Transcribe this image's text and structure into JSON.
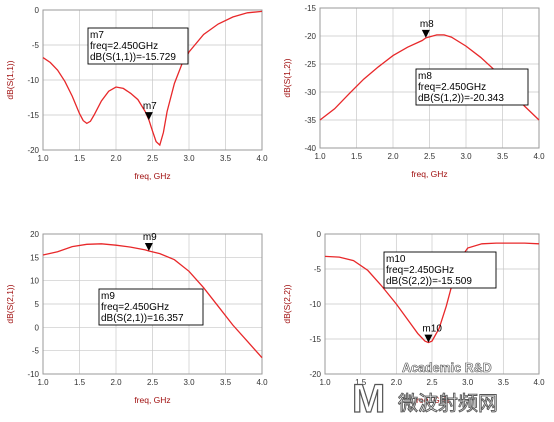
{
  "chart_data": [
    {
      "type": "line",
      "xlabel": "freq, GHz",
      "ylabel": "dB(S(1,1))",
      "xlim": [
        1.0,
        4.0
      ],
      "ylim": [
        -20,
        0
      ],
      "xticks": [
        "1.0",
        "1.5",
        "2.0",
        "2.5",
        "3.0",
        "3.5",
        "4.0"
      ],
      "yticks": [
        "0",
        "-5",
        "-10",
        "-15",
        "-20"
      ],
      "grid": true,
      "series": [
        {
          "color": "#e8282a",
          "x": [
            1.0,
            1.1,
            1.2,
            1.3,
            1.4,
            1.5,
            1.55,
            1.6,
            1.65,
            1.7,
            1.8,
            1.9,
            2.0,
            2.1,
            2.2,
            2.3,
            2.4,
            2.45,
            2.5,
            2.55,
            2.6,
            2.65,
            2.7,
            2.8,
            2.9,
            3.0,
            3.2,
            3.4,
            3.6,
            3.8,
            4.0
          ],
          "y": [
            -6.8,
            -7.5,
            -8.6,
            -10.2,
            -12.3,
            -14.8,
            -15.8,
            -16.2,
            -15.9,
            -15.0,
            -13.0,
            -11.6,
            -11.0,
            -11.2,
            -11.9,
            -12.8,
            -14.5,
            -15.7,
            -17.3,
            -18.8,
            -19.3,
            -17.5,
            -14.5,
            -10.5,
            -7.8,
            -6.0,
            -3.5,
            -2.0,
            -1.0,
            -0.4,
            -0.2
          ]
        }
      ],
      "marker": {
        "name": "m7",
        "x": 2.45,
        "y": -15.729,
        "freq_line": "freq=2.450GHz",
        "value_line": "dB(S(1,1))=-15.729"
      }
    },
    {
      "type": "line",
      "xlabel": "freq, GHz",
      "ylabel": "dB(S(1,2))",
      "xlim": [
        1.0,
        4.0
      ],
      "ylim": [
        -40,
        -15
      ],
      "xticks": [
        "1.0",
        "1.5",
        "2.0",
        "2.5",
        "3.0",
        "3.5",
        "4.0"
      ],
      "yticks": [
        "-15",
        "-20",
        "-25",
        "-30",
        "-35",
        "-40"
      ],
      "grid": true,
      "series": [
        {
          "color": "#e8282a",
          "x": [
            1.0,
            1.2,
            1.4,
            1.6,
            1.8,
            2.0,
            2.2,
            2.4,
            2.45,
            2.6,
            2.7,
            2.8,
            3.0,
            3.2,
            3.4,
            3.6,
            3.8,
            4.0
          ],
          "y": [
            -35.0,
            -33.0,
            -30.3,
            -27.7,
            -25.5,
            -23.5,
            -22.0,
            -20.8,
            -20.343,
            -19.8,
            -19.8,
            -20.2,
            -21.8,
            -23.8,
            -26.2,
            -29.5,
            -32.5,
            -35.0
          ]
        }
      ],
      "marker": {
        "name": "m8",
        "x": 2.45,
        "y": -20.343,
        "freq_line": "freq=2.450GHz",
        "value_line": "dB(S(1,2))=-20.343"
      }
    },
    {
      "type": "line",
      "xlabel": "freq, GHz",
      "ylabel": "dB(S(2,1))",
      "xlim": [
        1.0,
        4.0
      ],
      "ylim": [
        -10,
        20
      ],
      "xticks": [
        "1.0",
        "1.5",
        "2.0",
        "2.5",
        "3.0",
        "3.5",
        "4.0"
      ],
      "yticks": [
        "20",
        "15",
        "10",
        "5",
        "0",
        "-5",
        "-10"
      ],
      "grid": true,
      "series": [
        {
          "color": "#e8282a",
          "x": [
            1.0,
            1.2,
            1.4,
            1.6,
            1.8,
            2.0,
            2.2,
            2.4,
            2.45,
            2.6,
            2.8,
            3.0,
            3.2,
            3.4,
            3.6,
            3.8,
            4.0
          ],
          "y": [
            15.5,
            16.2,
            17.3,
            17.8,
            17.9,
            17.6,
            17.2,
            16.6,
            16.357,
            15.8,
            14.5,
            12.0,
            8.5,
            4.5,
            0.5,
            -3.0,
            -6.5
          ]
        }
      ],
      "marker": {
        "name": "m9",
        "x": 2.45,
        "y": 16.357,
        "freq_line": "freq=2.450GHz",
        "value_line": "dB(S(2,1))=16.357"
      }
    },
    {
      "type": "line",
      "xlabel": "freq, GHz",
      "ylabel": "dB(S(2,2))",
      "xlim": [
        1.0,
        4.0
      ],
      "ylim": [
        -20,
        0
      ],
      "xticks": [
        "1.0",
        "1.5",
        "2.0",
        "2.5",
        "3.0",
        "3.5",
        "4.0"
      ],
      "yticks": [
        "0",
        "-5",
        "-10",
        "-15",
        "-20"
      ],
      "grid": true,
      "series": [
        {
          "color": "#e8282a",
          "x": [
            1.0,
            1.2,
            1.4,
            1.6,
            1.8,
            2.0,
            2.2,
            2.3,
            2.4,
            2.45,
            2.5,
            2.6,
            2.7,
            2.8,
            2.9,
            3.0,
            3.2,
            3.4,
            3.6,
            3.8,
            4.0
          ],
          "y": [
            -3.2,
            -3.3,
            -3.8,
            -5.2,
            -7.5,
            -10.0,
            -12.8,
            -14.2,
            -15.3,
            -15.509,
            -15.3,
            -13.5,
            -10.3,
            -6.5,
            -3.5,
            -2.0,
            -1.4,
            -1.3,
            -1.3,
            -1.3,
            -1.4
          ]
        }
      ],
      "marker": {
        "name": "m10",
        "x": 2.45,
        "y": -15.509,
        "freq_line": "freq=2.450GHz",
        "value_line": "dB(S(2,2))=-15.509"
      }
    }
  ],
  "watermark": {
    "line1": "Academic R&D",
    "line2": "微波射频网"
  }
}
